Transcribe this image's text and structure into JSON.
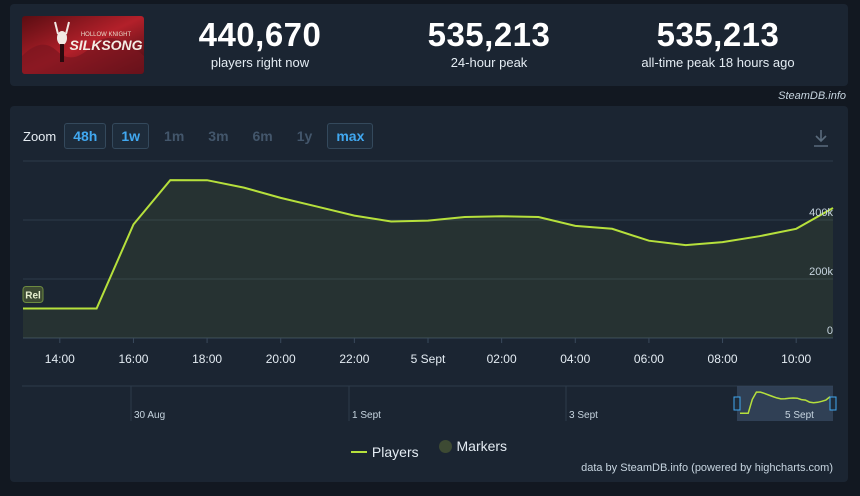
{
  "header": {
    "game_logo_alt": "Hollow Knight Silksong",
    "stats": [
      {
        "value": "440,670",
        "label": "players right now"
      },
      {
        "value": "535,213",
        "label": "24-hour peak"
      },
      {
        "value": "535,213",
        "label": "all-time peak 18 hours ago"
      }
    ],
    "credit": "SteamDB.info"
  },
  "toolbar": {
    "zoom_label": "Zoom",
    "buttons": [
      {
        "label": "48h",
        "active": true
      },
      {
        "label": "1w",
        "active": true
      },
      {
        "label": "1m",
        "active": false
      },
      {
        "label": "3m",
        "active": false
      },
      {
        "label": "6m",
        "active": false
      },
      {
        "label": "1y",
        "active": false
      },
      {
        "label": "max",
        "active": true
      }
    ],
    "download_icon": "download-icon"
  },
  "chart_data": {
    "type": "area",
    "x": [
      "13:00",
      "14:00",
      "15:00",
      "16:00",
      "17:00",
      "18:00",
      "19:00",
      "20:00",
      "21:00",
      "22:00",
      "23:00",
      "00:00",
      "01:00",
      "02:00",
      "03:00",
      "04:00",
      "05:00",
      "06:00",
      "07:00",
      "08:00",
      "09:00",
      "10:00",
      "11:00"
    ],
    "series": [
      {
        "name": "Players",
        "values": [
          100000,
          100000,
          100000,
          385000,
          535213,
          535000,
          510000,
          475000,
          445000,
          415000,
          395000,
          398000,
          410000,
          413000,
          410000,
          380000,
          370000,
          330000,
          315000,
          325000,
          345000,
          370000,
          440670
        ]
      }
    ],
    "y_ticks": [
      "0",
      "200k",
      "400k"
    ],
    "ylim": [
      0,
      600000
    ],
    "x_ticks": [
      "14:00",
      "16:00",
      "18:00",
      "20:00",
      "22:00",
      "5 Sept",
      "02:00",
      "04:00",
      "06:00",
      "08:00",
      "10:00"
    ],
    "marker": {
      "label": "Rel",
      "x": "13:00"
    },
    "grid": true,
    "colors": {
      "line": "#b6e03c",
      "marker": "#3d4a33"
    },
    "navigator": {
      "labels": [
        "30 Aug",
        "1 Sept",
        "3 Sept",
        "5 Sept"
      ]
    },
    "legend": [
      "Players",
      "Markers"
    ]
  },
  "footer": {
    "text": "data by SteamDB.info (powered by highcharts.com)"
  }
}
